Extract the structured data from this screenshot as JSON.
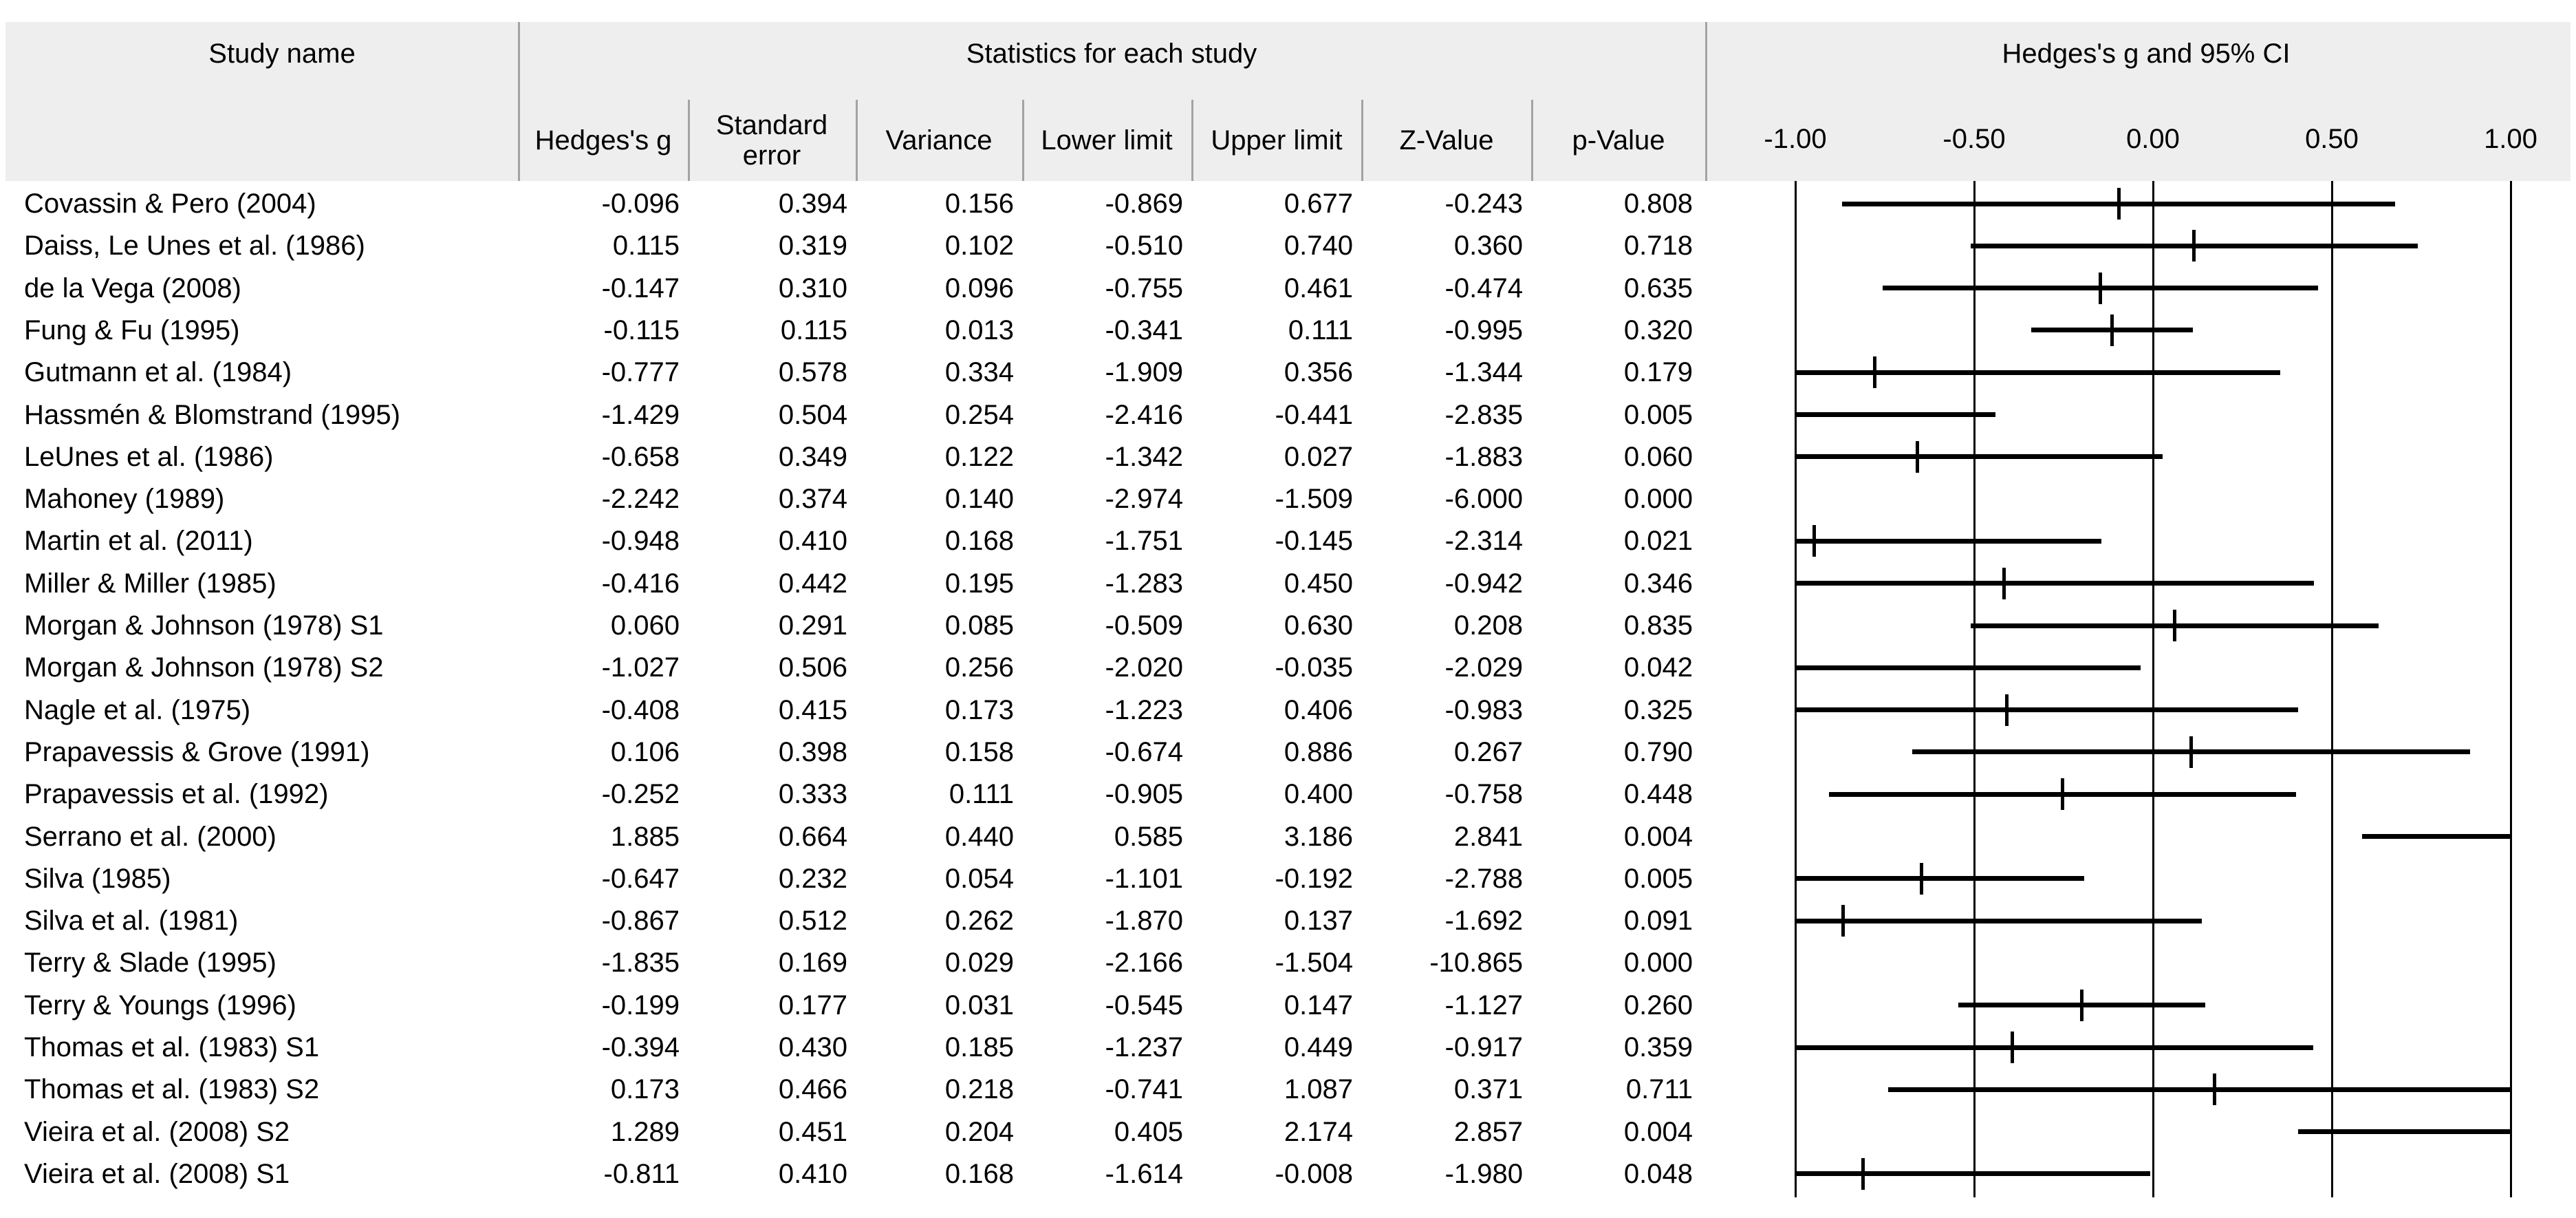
{
  "table": {
    "study_col_header": "Study name",
    "stats_group_header": "Statistics for each study",
    "plot_group_header": "Hedges's g and 95% CI",
    "stat_columns": [
      "Hedges's g",
      "Standard error",
      "Variance",
      "Lower limit",
      "Upper limit",
      "Z-Value",
      "p-Value"
    ],
    "rows": [
      {
        "study": "Covassin & Pero (2004)",
        "hedges_g": "-0.096",
        "standard_error": "0.394",
        "variance": "0.156",
        "lower_limit": "-0.869",
        "upper_limit": "0.677",
        "z_value": "-0.243",
        "p_value": "0.808"
      },
      {
        "study": "Daiss, Le Unes et al. (1986)",
        "hedges_g": "0.115",
        "standard_error": "0.319",
        "variance": "0.102",
        "lower_limit": "-0.510",
        "upper_limit": "0.740",
        "z_value": "0.360",
        "p_value": "0.718"
      },
      {
        "study": "de la Vega (2008)",
        "hedges_g": "-0.147",
        "standard_error": "0.310",
        "variance": "0.096",
        "lower_limit": "-0.755",
        "upper_limit": "0.461",
        "z_value": "-0.474",
        "p_value": "0.635"
      },
      {
        "study": "Fung & Fu (1995)",
        "hedges_g": "-0.115",
        "standard_error": "0.115",
        "variance": "0.013",
        "lower_limit": "-0.341",
        "upper_limit": "0.111",
        "z_value": "-0.995",
        "p_value": "0.320"
      },
      {
        "study": "Gutmann et al. (1984)",
        "hedges_g": "-0.777",
        "standard_error": "0.578",
        "variance": "0.334",
        "lower_limit": "-1.909",
        "upper_limit": "0.356",
        "z_value": "-1.344",
        "p_value": "0.179"
      },
      {
        "study": "Hassmén & Blomstrand (1995)",
        "hedges_g": "-1.429",
        "standard_error": "0.504",
        "variance": "0.254",
        "lower_limit": "-2.416",
        "upper_limit": "-0.441",
        "z_value": "-2.835",
        "p_value": "0.005"
      },
      {
        "study": "LeUnes et al. (1986)",
        "hedges_g": "-0.658",
        "standard_error": "0.349",
        "variance": "0.122",
        "lower_limit": "-1.342",
        "upper_limit": "0.027",
        "z_value": "-1.883",
        "p_value": "0.060"
      },
      {
        "study": "Mahoney (1989)",
        "hedges_g": "-2.242",
        "standard_error": "0.374",
        "variance": "0.140",
        "lower_limit": "-2.974",
        "upper_limit": "-1.509",
        "z_value": "-6.000",
        "p_value": "0.000"
      },
      {
        "study": "Martin et al. (2011)",
        "hedges_g": "-0.948",
        "standard_error": "0.410",
        "variance": "0.168",
        "lower_limit": "-1.751",
        "upper_limit": "-0.145",
        "z_value": "-2.314",
        "p_value": "0.021"
      },
      {
        "study": "Miller & Miller (1985)",
        "hedges_g": "-0.416",
        "standard_error": "0.442",
        "variance": "0.195",
        "lower_limit": "-1.283",
        "upper_limit": "0.450",
        "z_value": "-0.942",
        "p_value": "0.346"
      },
      {
        "study": "Morgan & Johnson (1978) S1",
        "hedges_g": "0.060",
        "standard_error": "0.291",
        "variance": "0.085",
        "lower_limit": "-0.509",
        "upper_limit": "0.630",
        "z_value": "0.208",
        "p_value": "0.835"
      },
      {
        "study": "Morgan & Johnson (1978) S2",
        "hedges_g": "-1.027",
        "standard_error": "0.506",
        "variance": "0.256",
        "lower_limit": "-2.020",
        "upper_limit": "-0.035",
        "z_value": "-2.029",
        "p_value": "0.042"
      },
      {
        "study": "Nagle et al. (1975)",
        "hedges_g": "-0.408",
        "standard_error": "0.415",
        "variance": "0.173",
        "lower_limit": "-1.223",
        "upper_limit": "0.406",
        "z_value": "-0.983",
        "p_value": "0.325"
      },
      {
        "study": "Prapavessis & Grove (1991)",
        "hedges_g": "0.106",
        "standard_error": "0.398",
        "variance": "0.158",
        "lower_limit": "-0.674",
        "upper_limit": "0.886",
        "z_value": "0.267",
        "p_value": "0.790"
      },
      {
        "study": "Prapavessis et al. (1992)",
        "hedges_g": "-0.252",
        "standard_error": "0.333",
        "variance": "0.111",
        "lower_limit": "-0.905",
        "upper_limit": "0.400",
        "z_value": "-0.758",
        "p_value": "0.448"
      },
      {
        "study": "Serrano et al. (2000)",
        "hedges_g": "1.885",
        "standard_error": "0.664",
        "variance": "0.440",
        "lower_limit": "0.585",
        "upper_limit": "3.186",
        "z_value": "2.841",
        "p_value": "0.004"
      },
      {
        "study": "Silva (1985)",
        "hedges_g": "-0.647",
        "standard_error": "0.232",
        "variance": "0.054",
        "lower_limit": "-1.101",
        "upper_limit": "-0.192",
        "z_value": "-2.788",
        "p_value": "0.005"
      },
      {
        "study": "Silva et al. (1981)",
        "hedges_g": "-0.867",
        "standard_error": "0.512",
        "variance": "0.262",
        "lower_limit": "-1.870",
        "upper_limit": "0.137",
        "z_value": "-1.692",
        "p_value": "0.091"
      },
      {
        "study": "Terry & Slade (1995)",
        "hedges_g": "-1.835",
        "standard_error": "0.169",
        "variance": "0.029",
        "lower_limit": "-2.166",
        "upper_limit": "-1.504",
        "z_value": "-10.865",
        "p_value": "0.000"
      },
      {
        "study": "Terry & Youngs (1996)",
        "hedges_g": "-0.199",
        "standard_error": "0.177",
        "variance": "0.031",
        "lower_limit": "-0.545",
        "upper_limit": "0.147",
        "z_value": "-1.127",
        "p_value": "0.260"
      },
      {
        "study": "Thomas et al. (1983) S1",
        "hedges_g": "-0.394",
        "standard_error": "0.430",
        "variance": "0.185",
        "lower_limit": "-1.237",
        "upper_limit": "0.449",
        "z_value": "-0.917",
        "p_value": "0.359"
      },
      {
        "study": "Thomas et al. (1983) S2",
        "hedges_g": "0.173",
        "standard_error": "0.466",
        "variance": "0.218",
        "lower_limit": "-0.741",
        "upper_limit": "1.087",
        "z_value": "0.371",
        "p_value": "0.711"
      },
      {
        "study": "Vieira et al. (2008) S2",
        "hedges_g": "1.289",
        "standard_error": "0.451",
        "variance": "0.204",
        "lower_limit": "0.405",
        "upper_limit": "2.174",
        "z_value": "2.857",
        "p_value": "0.004"
      },
      {
        "study": "Vieira et al. (2008) S1",
        "hedges_g": "-0.811",
        "standard_error": "0.410",
        "variance": "0.168",
        "lower_limit": "-1.614",
        "upper_limit": "-0.008",
        "z_value": "-1.980",
        "p_value": "0.048"
      }
    ]
  },
  "chart_data": {
    "type": "scatter",
    "variant": "forest-plot",
    "title": "Hedges's g and 95% CI",
    "xlabel": "Hedges's g",
    "x_ticks": [
      -1.0,
      -0.5,
      0.0,
      0.5,
      1.0
    ],
    "x_tick_labels": [
      "-1.00",
      "-0.50",
      "0.00",
      "0.50",
      "1.00"
    ],
    "xlim_clip": [
      -1.0,
      1.0
    ],
    "grid": true,
    "marker_style": "vertical-tick",
    "series": [
      {
        "study": "Covassin & Pero (2004)",
        "g": -0.096,
        "lower": -0.869,
        "upper": 0.677
      },
      {
        "study": "Daiss, Le Unes et al. (1986)",
        "g": 0.115,
        "lower": -0.51,
        "upper": 0.74
      },
      {
        "study": "de la Vega (2008)",
        "g": -0.147,
        "lower": -0.755,
        "upper": 0.461
      },
      {
        "study": "Fung & Fu (1995)",
        "g": -0.115,
        "lower": -0.341,
        "upper": 0.111
      },
      {
        "study": "Gutmann et al. (1984)",
        "g": -0.777,
        "lower": -1.909,
        "upper": 0.356
      },
      {
        "study": "Hassmén & Blomstrand (1995)",
        "g": -1.429,
        "lower": -2.416,
        "upper": -0.441
      },
      {
        "study": "LeUnes et al. (1986)",
        "g": -0.658,
        "lower": -1.342,
        "upper": 0.027
      },
      {
        "study": "Mahoney (1989)",
        "g": -2.242,
        "lower": -2.974,
        "upper": -1.509
      },
      {
        "study": "Martin et al. (2011)",
        "g": -0.948,
        "lower": -1.751,
        "upper": -0.145
      },
      {
        "study": "Miller & Miller (1985)",
        "g": -0.416,
        "lower": -1.283,
        "upper": 0.45
      },
      {
        "study": "Morgan & Johnson (1978) S1",
        "g": 0.06,
        "lower": -0.509,
        "upper": 0.63
      },
      {
        "study": "Morgan & Johnson (1978) S2",
        "g": -1.027,
        "lower": -2.02,
        "upper": -0.035
      },
      {
        "study": "Nagle et al. (1975)",
        "g": -0.408,
        "lower": -1.223,
        "upper": 0.406
      },
      {
        "study": "Prapavessis & Grove (1991)",
        "g": 0.106,
        "lower": -0.674,
        "upper": 0.886
      },
      {
        "study": "Prapavessis et al. (1992)",
        "g": -0.252,
        "lower": -0.905,
        "upper": 0.4
      },
      {
        "study": "Serrano et al. (2000)",
        "g": 1.885,
        "lower": 0.585,
        "upper": 3.186
      },
      {
        "study": "Silva (1985)",
        "g": -0.647,
        "lower": -1.101,
        "upper": -0.192
      },
      {
        "study": "Silva et al. (1981)",
        "g": -0.867,
        "lower": -1.87,
        "upper": 0.137
      },
      {
        "study": "Terry & Slade (1995)",
        "g": -1.835,
        "lower": -2.166,
        "upper": -1.504
      },
      {
        "study": "Terry & Youngs (1996)",
        "g": -0.199,
        "lower": -0.545,
        "upper": 0.147
      },
      {
        "study": "Thomas et al. (1983) S1",
        "g": -0.394,
        "lower": -1.237,
        "upper": 0.449
      },
      {
        "study": "Thomas et al. (1983) S2",
        "g": 0.173,
        "lower": -0.741,
        "upper": 1.087
      },
      {
        "study": "Vieira et al. (2008) S2",
        "g": 1.289,
        "lower": 0.405,
        "upper": 2.174
      },
      {
        "study": "Vieira et al. (2008) S1",
        "g": -0.811,
        "lower": -1.614,
        "upper": -0.008
      }
    ]
  },
  "colors": {
    "header_background": "#eeeeee",
    "divider": "#a3a3a3",
    "ink": "#000000",
    "background": "#ffffff"
  }
}
